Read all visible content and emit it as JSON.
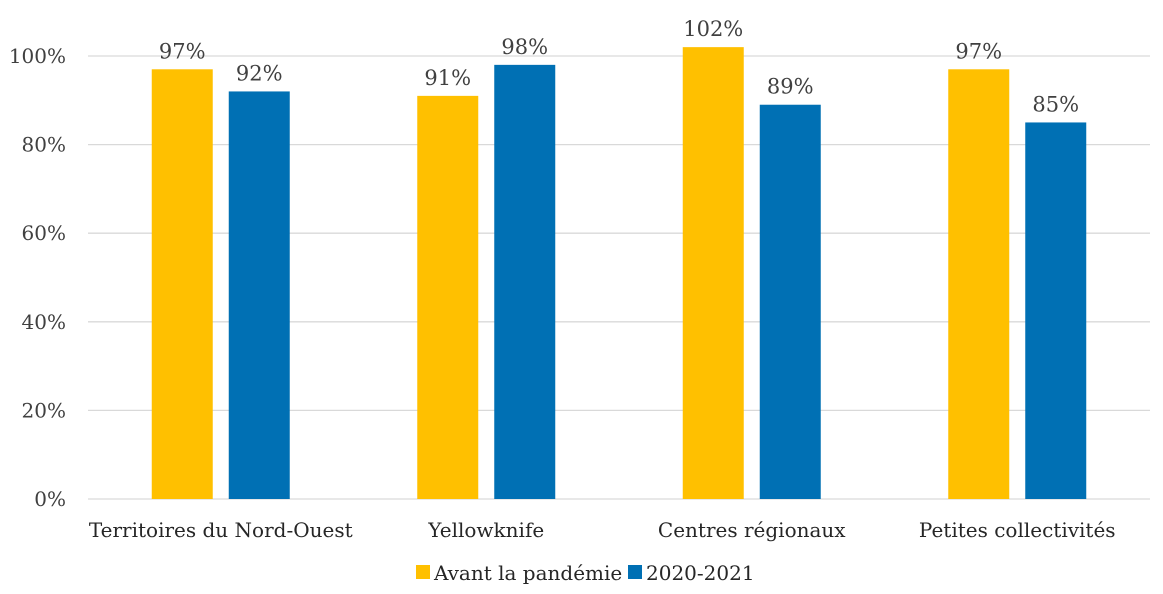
{
  "chart_data": {
    "type": "bar",
    "categories": [
      "Territoires du Nord-Ouest",
      "Yellowknife",
      "Centres régionaux",
      "Petites collectivités"
    ],
    "series": [
      {
        "name": "Avant la pandémie",
        "color": "#FFC000",
        "values": [
          97,
          91,
          102,
          97
        ],
        "labels": [
          "97%",
          "91%",
          "102%",
          "97%"
        ]
      },
      {
        "name": "2020-2021",
        "color": "#0070B4",
        "values": [
          92,
          98,
          89,
          85
        ],
        "labels": [
          "92%",
          "98%",
          "89%",
          "85%"
        ]
      }
    ],
    "ylim": [
      0,
      100
    ],
    "yticks": [
      0,
      20,
      40,
      60,
      80,
      100
    ],
    "ytick_labels": [
      "0%",
      "20%",
      "40%",
      "60%",
      "80%",
      "100%"
    ],
    "title": "",
    "xlabel": "",
    "ylabel": "",
    "grid": true,
    "legend_position": "bottom"
  }
}
